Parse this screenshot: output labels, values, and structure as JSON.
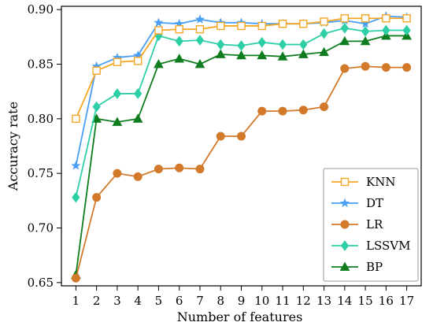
{
  "chart_data": {
    "type": "line",
    "xlabel": "Number of  features",
    "ylabel": "Accuracy rate",
    "x": [
      1,
      2,
      3,
      4,
      5,
      6,
      7,
      8,
      9,
      10,
      11,
      12,
      13,
      14,
      15,
      16,
      17
    ],
    "xlim": [
      0.3,
      17.7
    ],
    "ylim": [
      0.647,
      0.903
    ],
    "yticks": [
      0.65,
      0.7,
      0.75,
      0.8,
      0.85,
      0.9
    ],
    "ytick_labels": [
      "0.65",
      "0.70",
      "0.75",
      "0.80",
      "0.85",
      "0.90"
    ],
    "xtick_labels": [
      "1",
      "2",
      "3",
      "4",
      "5",
      "6",
      "7",
      "8",
      "9",
      "10",
      "11",
      "12",
      "13",
      "14",
      "15",
      "16",
      "17"
    ],
    "legend_position": "bottom-right",
    "grid": false,
    "series": [
      {
        "name": "KNN",
        "color": "#f5a623",
        "marker": "square-open",
        "values": [
          0.8,
          0.844,
          0.852,
          0.853,
          0.881,
          0.882,
          0.882,
          0.885,
          0.885,
          0.885,
          0.887,
          0.887,
          0.889,
          0.892,
          0.892,
          0.892,
          0.892
        ]
      },
      {
        "name": "DT",
        "color": "#4a9ff5",
        "marker": "star",
        "values": [
          0.757,
          0.848,
          0.856,
          0.858,
          0.888,
          0.887,
          0.891,
          0.888,
          0.888,
          0.887,
          0.887,
          0.887,
          0.888,
          0.89,
          0.887,
          0.894,
          0.893
        ]
      },
      {
        "name": "LR",
        "color": "#d2792a",
        "marker": "circle",
        "values": [
          0.654,
          0.728,
          0.75,
          0.747,
          0.754,
          0.755,
          0.754,
          0.784,
          0.784,
          0.807,
          0.807,
          0.808,
          0.811,
          0.846,
          0.848,
          0.847,
          0.847
        ]
      },
      {
        "name": "LSSVM",
        "color": "#2ecfa6",
        "marker": "diamond",
        "values": [
          0.728,
          0.811,
          0.823,
          0.823,
          0.876,
          0.871,
          0.872,
          0.868,
          0.867,
          0.87,
          0.868,
          0.868,
          0.878,
          0.883,
          0.88,
          0.881,
          0.881
        ]
      },
      {
        "name": "BP",
        "color": "#0f7d1f",
        "marker": "triangle",
        "values": [
          0.657,
          0.8,
          0.797,
          0.8,
          0.85,
          0.855,
          0.85,
          0.859,
          0.858,
          0.858,
          0.857,
          0.859,
          0.861,
          0.871,
          0.871,
          0.876,
          0.876
        ]
      }
    ]
  }
}
